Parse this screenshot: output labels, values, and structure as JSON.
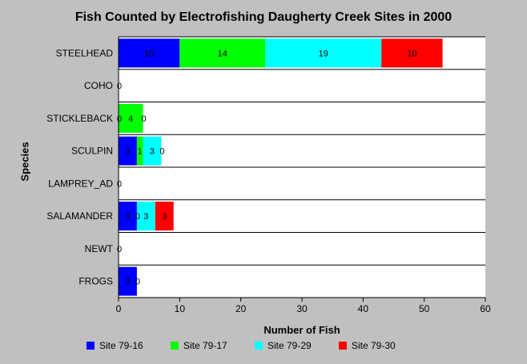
{
  "chart_data": {
    "type": "bar",
    "orientation": "horizontal",
    "stacked": true,
    "title": "Fish Counted by Electrofishing Daugherty Creek Sites in 2000",
    "xlabel": "Number of Fish",
    "ylabel": "Species",
    "xlim": [
      0,
      60
    ],
    "xticks": [
      0,
      10,
      20,
      30,
      40,
      50,
      60
    ],
    "categories": [
      "STEELHEAD",
      "COHO",
      "STICKLEBACK",
      "SCULPIN",
      "LAMPREY_AD",
      "SALAMANDER",
      "NEWT",
      "FROGS"
    ],
    "series": [
      {
        "name": "Site 79-16",
        "color": "#0000ff",
        "values": [
          10,
          0,
          0,
          3,
          0,
          3,
          0,
          3
        ]
      },
      {
        "name": "Site 79-17",
        "color": "#00ff00",
        "values": [
          14,
          0,
          4,
          1,
          0,
          0,
          0,
          0
        ]
      },
      {
        "name": "Site 79-29",
        "color": "#00ffff",
        "values": [
          19,
          0,
          0,
          3,
          0,
          3,
          0,
          0
        ]
      },
      {
        "name": "Site 79-30",
        "color": "#ff0000",
        "values": [
          10,
          0,
          0,
          0,
          0,
          3,
          0,
          0
        ]
      }
    ],
    "data_labels": [
      [
        "10",
        "14",
        "19",
        "10"
      ],
      [
        "0"
      ],
      [
        "0",
        "4",
        "0"
      ],
      [
        "3",
        "1",
        "3",
        "0"
      ],
      [
        "0"
      ],
      [
        "3",
        "0",
        "3",
        "3"
      ],
      [
        "0"
      ],
      [
        "3",
        "0"
      ]
    ],
    "grid": "horizontal lines between categories",
    "legend_position": "bottom"
  }
}
